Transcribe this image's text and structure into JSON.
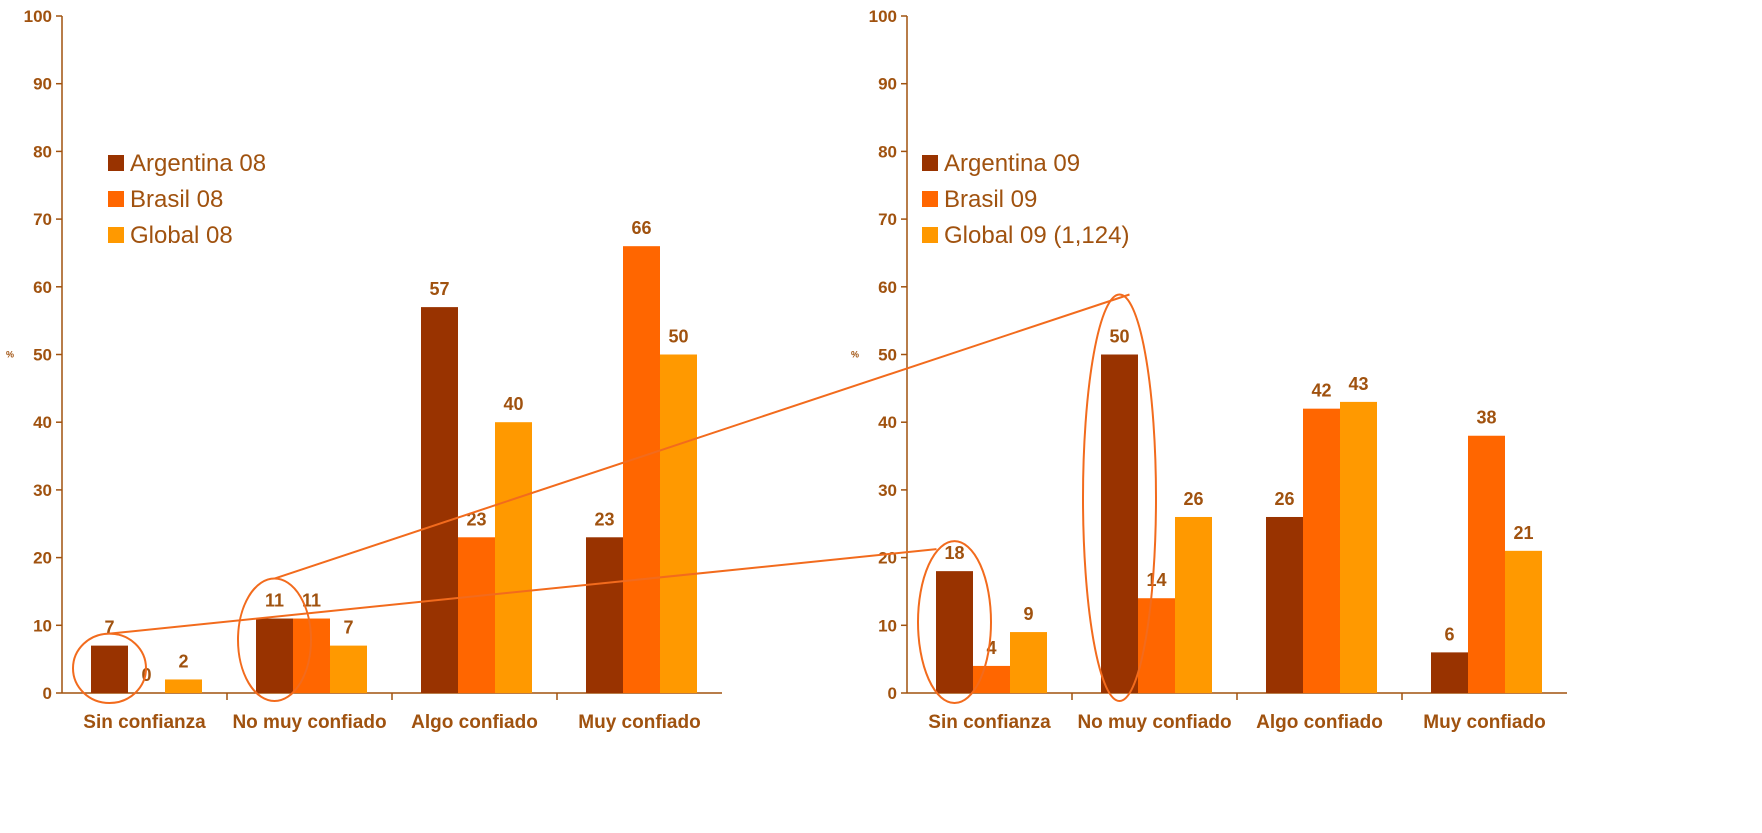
{
  "chart_data": [
    {
      "type": "bar",
      "ylabel": "%",
      "ylim": [
        0,
        100
      ],
      "yticks": [
        0,
        10,
        20,
        30,
        40,
        50,
        60,
        70,
        80,
        90,
        100
      ],
      "categories": [
        "Sin confianza",
        "No muy confiado",
        "Algo confiado",
        "Muy confiado"
      ],
      "series": [
        {
          "name": "Argentina 08",
          "color": "#993300",
          "values": [
            7,
            11,
            57,
            23
          ]
        },
        {
          "name": "Brasil 08",
          "color": "#ff6600",
          "values": [
            0,
            11,
            23,
            66
          ]
        },
        {
          "name": "Global 08",
          "color": "#ff9900",
          "values": [
            2,
            7,
            40,
            50
          ]
        }
      ],
      "legend": "upper-left",
      "grid": false
    },
    {
      "type": "bar",
      "ylabel": "%",
      "ylim": [
        0,
        100
      ],
      "yticks": [
        0,
        10,
        20,
        30,
        40,
        50,
        60,
        70,
        80,
        90,
        100
      ],
      "categories": [
        "Sin confianza",
        "No muy confiado",
        "Algo confiado",
        "Muy confiado"
      ],
      "series": [
        {
          "name": "Argentina 09",
          "color": "#993300",
          "values": [
            18,
            50,
            26,
            6
          ]
        },
        {
          "name": "Brasil 09",
          "color": "#ff6600",
          "values": [
            4,
            14,
            42,
            38
          ]
        },
        {
          "name": "Global 09 (1,124)",
          "color": "#ff9900",
          "values": [
            9,
            26,
            43,
            21
          ]
        }
      ],
      "legend": "upper-left",
      "grid": false
    }
  ],
  "colors": {
    "text": "#a0520f",
    "axis": "#a0520f",
    "highlight": "#f26b1d"
  },
  "annotations": [
    {
      "type": "connector",
      "from": "Argentina 08 · Sin confianza",
      "to": "Argentina 09 · Sin confianza"
    },
    {
      "type": "connector",
      "from": "Argentina 08 · No muy confiado",
      "to": "Argentina 09 · No muy confiado"
    }
  ]
}
